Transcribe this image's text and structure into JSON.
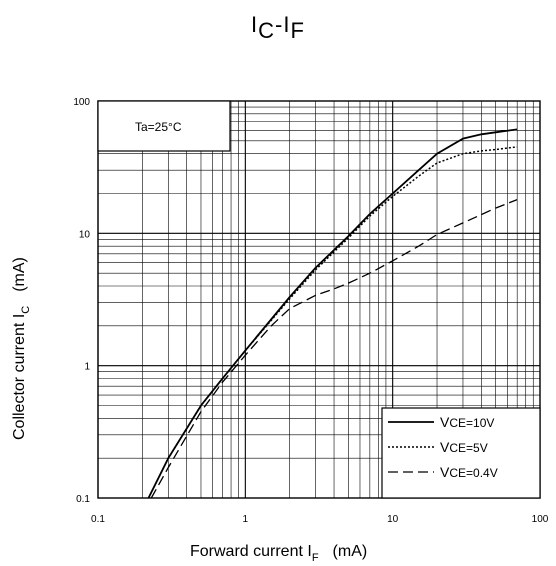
{
  "title": {
    "main": "I",
    "sub1": "C",
    "sep": "-I",
    "sub2": "F"
  },
  "condition_label": "Ta=25°C",
  "xlabel": {
    "text": "Forward current  I",
    "sub": "F",
    "unit": "(mA)"
  },
  "ylabel": {
    "text": "Collector current  I",
    "sub": "C",
    "unit": "(mA)"
  },
  "chart_data": {
    "type": "line",
    "title": "IC-IF",
    "xscale": "log",
    "yscale": "log",
    "xlim": [
      0.1,
      100
    ],
    "ylim": [
      0.1,
      100
    ],
    "xticks": [
      "0.1",
      "1",
      "10",
      "100"
    ],
    "yticks": [
      "0.1",
      "1",
      "10",
      "100"
    ],
    "xlabel": "Forward current IF (mA)",
    "ylabel": "Collector current IC (mA)",
    "grid": true,
    "legend_position": "bottom-right",
    "series": [
      {
        "name": "VCE=10V",
        "style": "solid",
        "x": [
          0.22,
          0.3,
          0.5,
          0.7,
          1,
          2,
          3,
          5,
          7,
          10,
          15,
          20,
          30,
          40,
          50,
          70
        ],
        "y": [
          0.1,
          0.2,
          0.5,
          0.8,
          1.3,
          3.3,
          5.5,
          9.5,
          14,
          20,
          30,
          40,
          52,
          56,
          58,
          61
        ]
      },
      {
        "name": "VCE=5V",
        "style": "dotted",
        "x": [
          0.22,
          0.3,
          0.5,
          0.7,
          1,
          2,
          3,
          5,
          7,
          10,
          15,
          20,
          30,
          40,
          50,
          70
        ],
        "y": [
          0.1,
          0.2,
          0.5,
          0.8,
          1.3,
          3.2,
          5.3,
          9.2,
          13.5,
          19,
          27,
          34,
          40,
          42,
          43,
          45
        ]
      },
      {
        "name": "VCE=0.4V",
        "style": "dashed",
        "x": [
          0.23,
          0.3,
          0.5,
          0.7,
          1,
          1.5,
          2,
          3,
          4,
          5,
          7,
          10,
          15,
          20,
          30,
          50,
          70
        ],
        "y": [
          0.1,
          0.17,
          0.45,
          0.75,
          1.2,
          2.0,
          2.7,
          3.4,
          3.8,
          4.2,
          5.0,
          6.2,
          8.0,
          9.8,
          12,
          15.5,
          18
        ]
      }
    ]
  },
  "legend": [
    {
      "prefix": "V",
      "name": "CE=10V"
    },
    {
      "prefix": "V",
      "name": "CE=5V"
    },
    {
      "prefix": "V",
      "name": "CE=0.4V"
    }
  ]
}
